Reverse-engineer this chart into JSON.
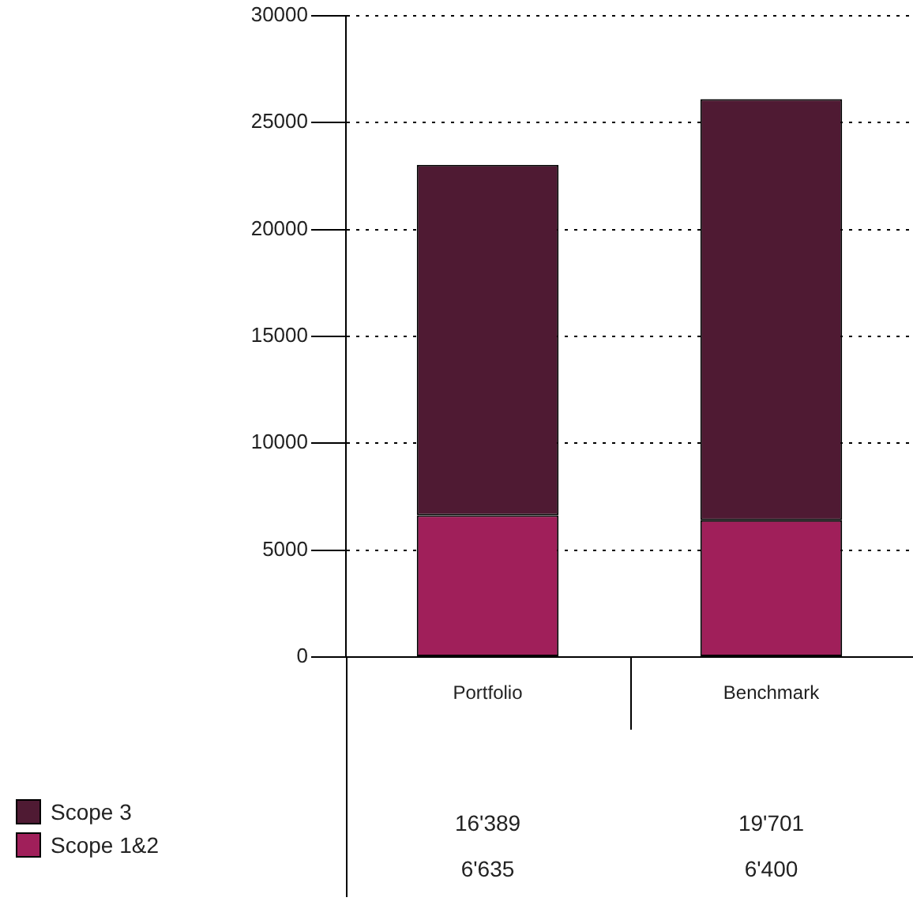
{
  "chart_data": {
    "type": "bar",
    "stacked": true,
    "categories": [
      "Portfolio",
      "Benchmark"
    ],
    "series": [
      {
        "name": "Scope 1&2",
        "color": "#a01f5a",
        "values": [
          6635,
          6400
        ],
        "value_labels": [
          "6'635",
          "6'400"
        ]
      },
      {
        "name": "Scope 3",
        "color": "#4f1a33",
        "values": [
          16389,
          19701
        ],
        "value_labels": [
          "16'389",
          "19'701"
        ]
      }
    ],
    "ylim": [
      0,
      30000
    ],
    "yticks": [
      0,
      5000,
      10000,
      15000,
      20000,
      25000,
      30000
    ],
    "grid": "y",
    "legend": "bottom left"
  }
}
